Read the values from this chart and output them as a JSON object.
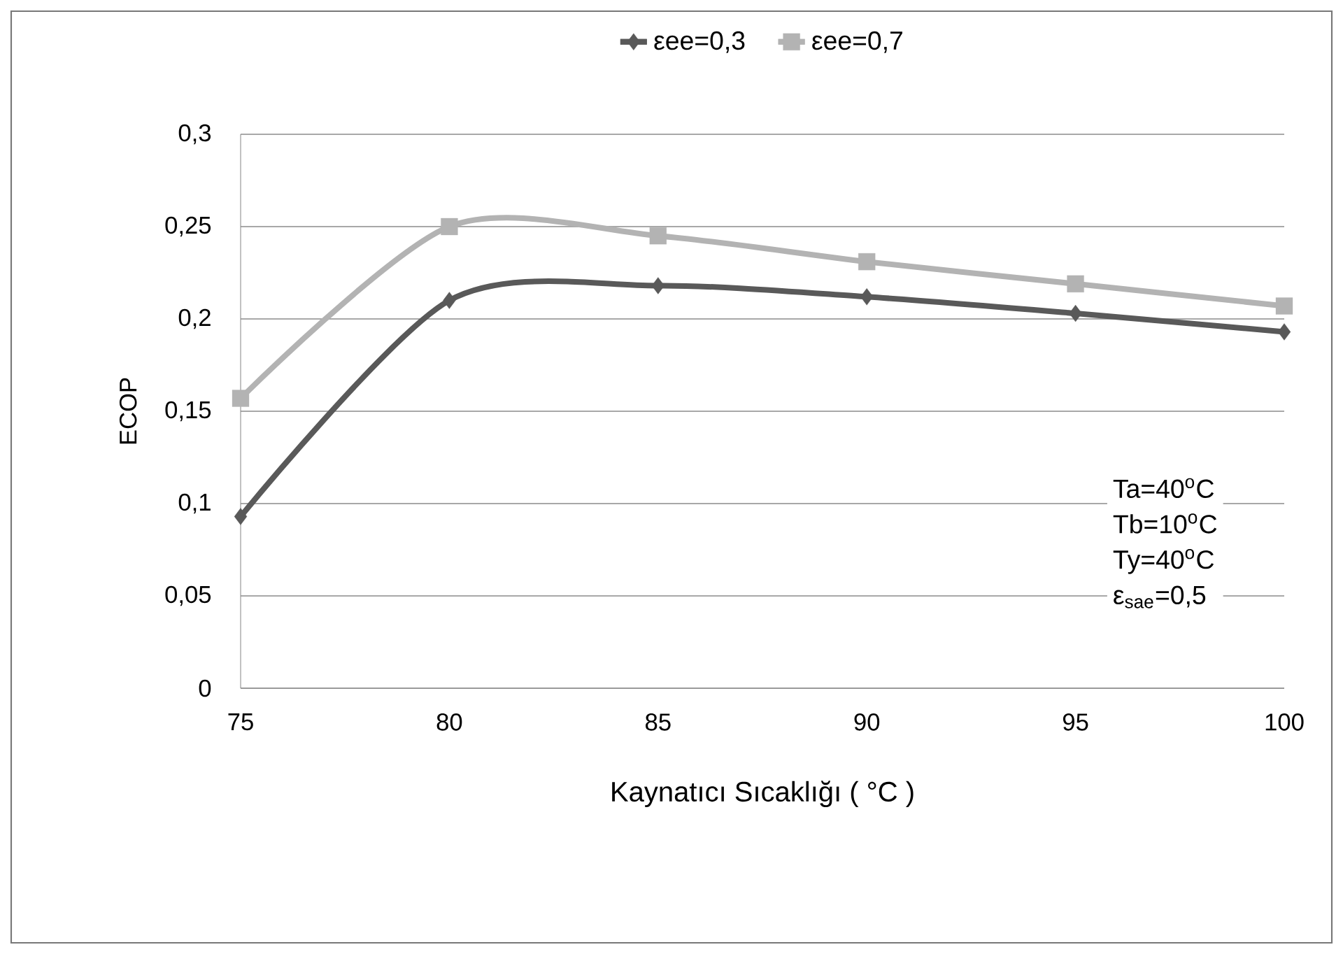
{
  "chart_data": {
    "type": "line",
    "xlabel": "Kaynatıcı Sıcaklığı ( °C )",
    "ylabel": "ECOP",
    "x": [
      75,
      80,
      85,
      90,
      95,
      100
    ],
    "series": [
      {
        "name": "εee=0,3",
        "color": "#595959",
        "marker": "diamond",
        "values": [
          0.093,
          0.21,
          0.218,
          0.212,
          0.203,
          0.193
        ]
      },
      {
        "name": "εee=0,7",
        "color": "#b3b3b3",
        "marker": "square",
        "values": [
          0.157,
          0.25,
          0.245,
          0.231,
          0.219,
          0.207
        ]
      }
    ],
    "xlim": [
      75,
      100
    ],
    "xticks": [
      75,
      80,
      85,
      90,
      95,
      100
    ],
    "ylim": [
      0,
      0.3
    ],
    "yticks": [
      0,
      {
        "value": 0.05,
        "label": "0,05"
      },
      {
        "value": 0.1,
        "label": "0,1"
      },
      {
        "value": 0.15,
        "label": "0,15"
      },
      {
        "value": 0.2,
        "label": "0,2"
      },
      {
        "value": 0.25,
        "label": "0,25"
      },
      {
        "value": 0.3,
        "label": "0,3"
      }
    ],
    "grid": "y",
    "legend": "top",
    "line_style": "solid",
    "annotations": [
      "Ta=40$^{o}$C",
      "Tb=10$^{o}$C",
      "Ty=40$^{o}$C",
      "ε$_{sae}$=0,5"
    ]
  }
}
